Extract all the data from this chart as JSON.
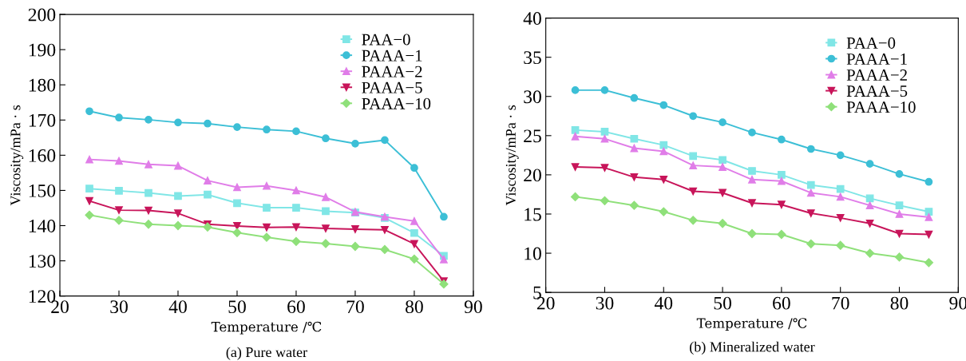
{
  "chart_data": [
    {
      "type": "line",
      "title": "(a) Pure water",
      "xlabel": "Temperature /℃",
      "ylabel": "Viscosity/mPa · s",
      "x": [
        25,
        30,
        35,
        40,
        45,
        50,
        55,
        60,
        65,
        70,
        75,
        80,
        85
      ],
      "xlim": [
        20,
        90
      ],
      "xticks": [
        20,
        30,
        40,
        50,
        60,
        70,
        80,
        90
      ],
      "ylim": [
        120,
        200
      ],
      "yticks": [
        120,
        130,
        140,
        150,
        160,
        170,
        180,
        190,
        200
      ],
      "grid": false,
      "legend": "top right",
      "line_style": "solid",
      "series": [
        {
          "name": "PAA−0",
          "color": "#80e6e6",
          "marker": "square",
          "values": [
            150.5,
            149.9,
            149.3,
            148.4,
            148.8,
            146.4,
            145.1,
            145.1,
            144.1,
            143.7,
            142.2,
            137.9,
            131.4
          ]
        },
        {
          "name": "PAAA−1",
          "color": "#3cbfd6",
          "marker": "circle",
          "values": [
            172.5,
            170.7,
            170.1,
            169.3,
            169.0,
            168.0,
            167.3,
            166.8,
            164.8,
            163.3,
            164.3,
            156.4,
            142.5
          ]
        },
        {
          "name": "PAAA−2",
          "color": "#e07de8",
          "marker": "triangle",
          "values": [
            158.8,
            158.4,
            157.4,
            157.0,
            152.8,
            150.9,
            151.3,
            150.0,
            148.1,
            143.9,
            142.5,
            141.3,
            130.4
          ]
        },
        {
          "name": "PAAA−5",
          "color": "#c8155a",
          "marker": "triangle_down",
          "values": [
            147.0,
            144.4,
            144.3,
            143.5,
            140.4,
            139.9,
            139.5,
            139.6,
            139.2,
            139.0,
            138.8,
            134.8,
            124.2
          ]
        },
        {
          "name": "PAAA−10",
          "color": "#8fe07a",
          "marker": "diamond",
          "values": [
            143.0,
            141.5,
            140.4,
            140.0,
            139.6,
            138.0,
            136.7,
            135.5,
            134.9,
            134.1,
            133.2,
            130.5,
            123.4
          ]
        }
      ]
    },
    {
      "type": "line",
      "title": "(b) Mineralized water",
      "xlabel": "Temperature /℃",
      "ylabel": "Viscosity/mPa · s",
      "x": [
        25,
        30,
        35,
        40,
        45,
        50,
        55,
        60,
        65,
        70,
        75,
        80,
        85
      ],
      "xlim": [
        20,
        90
      ],
      "xticks": [
        20,
        30,
        40,
        50,
        60,
        70,
        80,
        90
      ],
      "ylim": [
        5,
        40
      ],
      "yticks": [
        5,
        10,
        15,
        20,
        25,
        30,
        35,
        40
      ],
      "grid": false,
      "legend": "top right",
      "line_style": "solid",
      "series": [
        {
          "name": "PAA−0",
          "color": "#80e6e6",
          "marker": "square",
          "values": [
            25.7,
            25.5,
            24.6,
            23.8,
            22.4,
            21.9,
            20.5,
            20.0,
            18.7,
            18.2,
            17.0,
            16.1,
            15.3
          ]
        },
        {
          "name": "PAAA−1",
          "color": "#3cbfd6",
          "marker": "circle",
          "values": [
            30.8,
            30.8,
            29.8,
            28.9,
            27.5,
            26.7,
            25.4,
            24.5,
            23.3,
            22.5,
            21.4,
            20.1,
            19.1
          ]
        },
        {
          "name": "PAAA−2",
          "color": "#e07de8",
          "marker": "triangle",
          "values": [
            24.9,
            24.6,
            23.4,
            23.0,
            21.2,
            21.0,
            19.4,
            19.2,
            17.7,
            17.2,
            16.1,
            15.0,
            14.6
          ]
        },
        {
          "name": "PAAA−5",
          "color": "#c8155a",
          "marker": "triangle_down",
          "values": [
            21.0,
            20.9,
            19.7,
            19.4,
            17.9,
            17.7,
            16.4,
            16.2,
            15.1,
            14.5,
            13.8,
            12.5,
            12.4
          ]
        },
        {
          "name": "PAAA−10",
          "color": "#8fe07a",
          "marker": "diamond",
          "values": [
            17.2,
            16.7,
            16.1,
            15.3,
            14.2,
            13.8,
            12.5,
            12.4,
            11.2,
            11.0,
            10.0,
            9.5,
            8.8
          ]
        }
      ]
    }
  ]
}
